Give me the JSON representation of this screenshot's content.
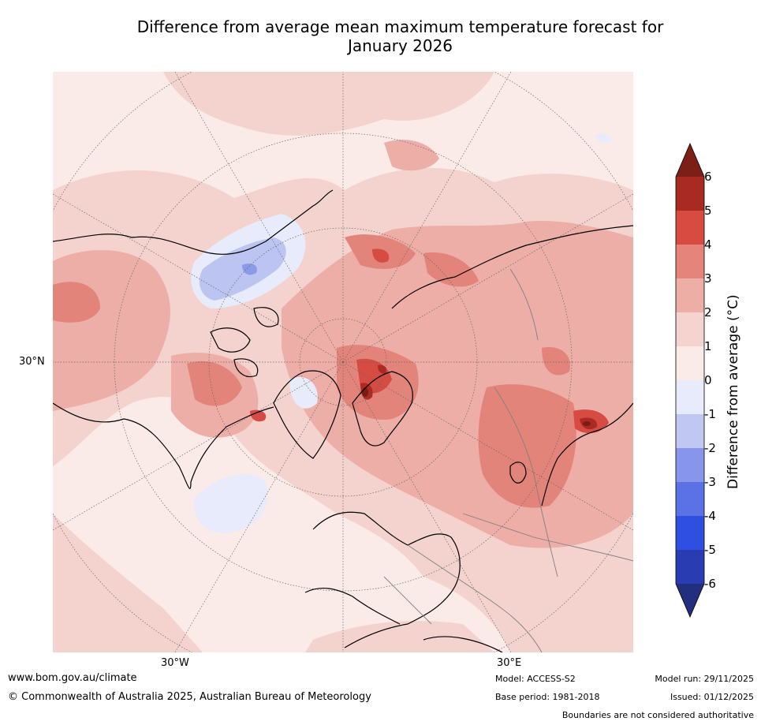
{
  "title_line1": "Difference from average mean maximum temperature forecast for",
  "title_line2": "January 2026",
  "map": {
    "lat_label": "30°N",
    "lon_labels": [
      "30°W",
      "30°E"
    ],
    "colors": {
      "ocean_light": "#fbebe8",
      "anom_1_2": "#f4d3cf",
      "anom_2_3": "#ecaea7",
      "anom_3_4": "#e3847a",
      "anom_4_5": "#d64c42",
      "anom_5_6": "#ad2a23",
      "anom_gt6": "#7a1c16",
      "anom_0_m1": "#e7ebfb",
      "anom_m1_m2": "#bcc5f1",
      "anom_m2_m3": "#8a9bea",
      "coast": "#000000",
      "borders": "#808080",
      "grid": "#666666"
    }
  },
  "colorbar": {
    "label": "Difference from average (°C)",
    "ticks": [
      "6",
      "5",
      "4",
      "3",
      "2",
      "1",
      "0",
      "-1",
      "-2",
      "-3",
      "-4",
      "-5",
      "-6"
    ],
    "bands": [
      6,
      5,
      4,
      3,
      2,
      1,
      0,
      -1,
      -2,
      -3,
      -4,
      -5
    ],
    "colors": [
      "#a92a22",
      "#d74b40",
      "#e5847a",
      "#edaea6",
      "#f5d3cf",
      "#fbebe8",
      "#e8ebfb",
      "#c0c7f2",
      "#8796eb",
      "#5a72e6",
      "#2f4fe2",
      "#2a3cb2"
    ],
    "over_color": "#7b1f17",
    "under_color": "#212f7e"
  },
  "footer": {
    "website": "www.bom.gov.au/climate",
    "copyright": "© Commonwealth of Australia 2025, Australian Bureau of Meteorology",
    "model": "Model: ACCESS-S2",
    "base_period": "Base period: 1981-2018",
    "model_run": "Model run: 29/11/2025",
    "issued": "Issued: 01/12/2025",
    "disclaimer": "Boundaries are not considered authoritative"
  }
}
